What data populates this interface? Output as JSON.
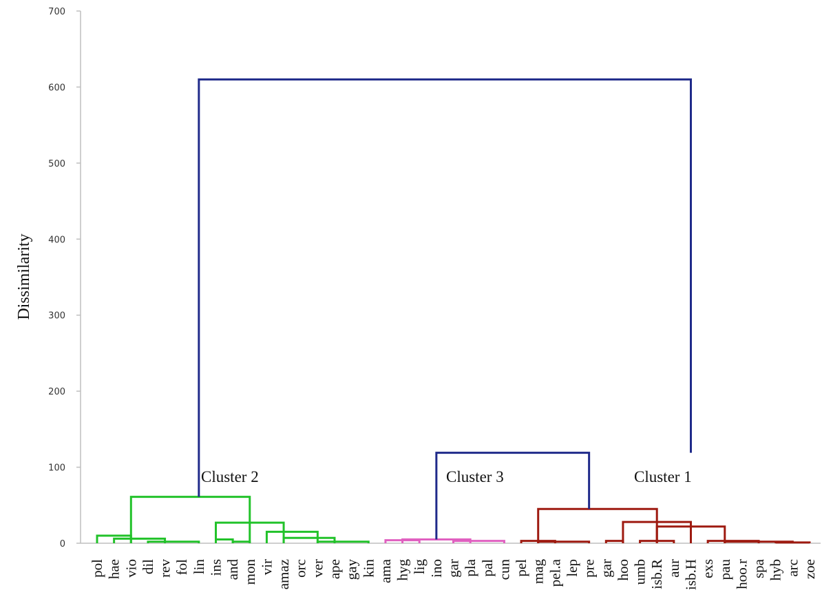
{
  "chart_data": {
    "type": "dendrogram",
    "ylabel": "Dissimilarity",
    "ylim": [
      0,
      700
    ],
    "yticks": [
      0,
      100,
      200,
      300,
      400,
      500,
      600,
      700
    ],
    "colors": {
      "axis": "#bfbfbf",
      "root": "#1f2a8a",
      "cluster_2": "#22c22a",
      "cluster_3": "#e060c0",
      "cluster_1": "#9e1a10"
    },
    "leaves": [
      "pol",
      "hae",
      "vio",
      "dil",
      "rev",
      "fol",
      "lin",
      "ins",
      "and",
      "mon",
      "vir",
      "amaz",
      "orc",
      "ver",
      "ape",
      "gay",
      "kin",
      "ama",
      "hyg",
      "lig",
      "ino",
      "gar",
      "pla",
      "pal",
      "cun",
      "pel",
      "mag",
      "pel.a",
      "lep",
      "pre",
      "gar",
      "hoo",
      "umb",
      "isb.R",
      "aur",
      "isb.H",
      "exs",
      "pau",
      "hoo.r",
      "spa",
      "hyb",
      "arc",
      "zoe"
    ],
    "clusters": [
      {
        "label": "Cluster 2",
        "leaves": [
          "pol",
          "hae",
          "vio",
          "dil",
          "rev",
          "fol",
          "lin",
          "ins",
          "and",
          "mon",
          "vir",
          "amaz",
          "orc",
          "ver",
          "ape",
          "gay",
          "kin"
        ],
        "height": 61
      },
      {
        "label": "Cluster 3",
        "leaves": [
          "ama",
          "hyg",
          "lig",
          "ino",
          "gar",
          "pla",
          "pal",
          "cun"
        ],
        "height": 5
      },
      {
        "label": "Cluster 1",
        "leaves": [
          "pel",
          "mag",
          "pel.a",
          "lep",
          "pre",
          "gar",
          "hoo",
          "umb",
          "isb.R",
          "aur",
          "isb.H",
          "exs",
          "pau",
          "hoo.r",
          "spa",
          "hyb",
          "arc",
          "zoe"
        ],
        "height": 45
      }
    ],
    "merges": [
      {
        "cluster": "cluster_2",
        "x1": "pol",
        "x2": "vio",
        "height": 10
      },
      {
        "cluster": "cluster_2",
        "x1": "hae",
        "x2": "rev",
        "height": 6
      },
      {
        "cluster": "cluster_2",
        "x1": "dil",
        "x2": "lin",
        "height": 2
      },
      {
        "cluster": "cluster_2",
        "x1": "ins",
        "x2": "and",
        "height": 5
      },
      {
        "cluster": "cluster_2",
        "x1": "and",
        "x2": "mon",
        "height": 2
      },
      {
        "cluster": "cluster_2",
        "x1": "ins",
        "x2": "amaz",
        "height": 27
      },
      {
        "cluster": "cluster_2",
        "x1": "vir",
        "x2": "ver",
        "height": 15
      },
      {
        "cluster": "cluster_2",
        "x1": "amaz",
        "x2": "ape",
        "height": 7
      },
      {
        "cluster": "cluster_2",
        "x1": "ver",
        "x2": "kin",
        "height": 2
      },
      {
        "cluster": "cluster_2",
        "x1": "vio",
        "x2": "mon",
        "height": 61
      },
      {
        "cluster": "cluster_3",
        "x1": "ama",
        "x2": "lig",
        "height": 4
      },
      {
        "cluster": "cluster_3",
        "x1": "hyg",
        "x2": "pla",
        "height": 5
      },
      {
        "cluster": "cluster_3",
        "x1": "gar",
        "x2": "cun",
        "height": 3
      },
      {
        "cluster": "cluster_1",
        "x1": "pel",
        "x2": "pel.a",
        "height": 3
      },
      {
        "cluster": "cluster_1",
        "x1": "mag",
        "x2": "pre",
        "height": 2
      },
      {
        "cluster": "cluster_1",
        "x1": "gar",
        "x2": "hoo",
        "height": 3
      },
      {
        "cluster": "cluster_1",
        "x1": "hoo",
        "x2": "isb.H",
        "height": 28
      },
      {
        "cluster": "cluster_1",
        "x1": "umb",
        "x2": "aur",
        "height": 3
      },
      {
        "cluster": "cluster_1",
        "x1": "isb.R",
        "x2": "pau",
        "height": 22
      },
      {
        "cluster": "cluster_1",
        "x1": "exs",
        "x2": "spa",
        "height": 3
      },
      {
        "cluster": "cluster_1",
        "x1": "pau",
        "x2": "arc",
        "height": 2
      },
      {
        "cluster": "cluster_1",
        "x1": "hyb",
        "x2": "zoe",
        "height": 1
      },
      {
        "cluster": "cluster_1",
        "x1": "mag",
        "x2": "isb.R",
        "height": 45
      },
      {
        "cluster": "root",
        "x1": "ino",
        "x2": "pre",
        "height": 119
      },
      {
        "cluster": "root",
        "x1": "lin",
        "x2": "isb.H",
        "height": 610
      }
    ]
  }
}
